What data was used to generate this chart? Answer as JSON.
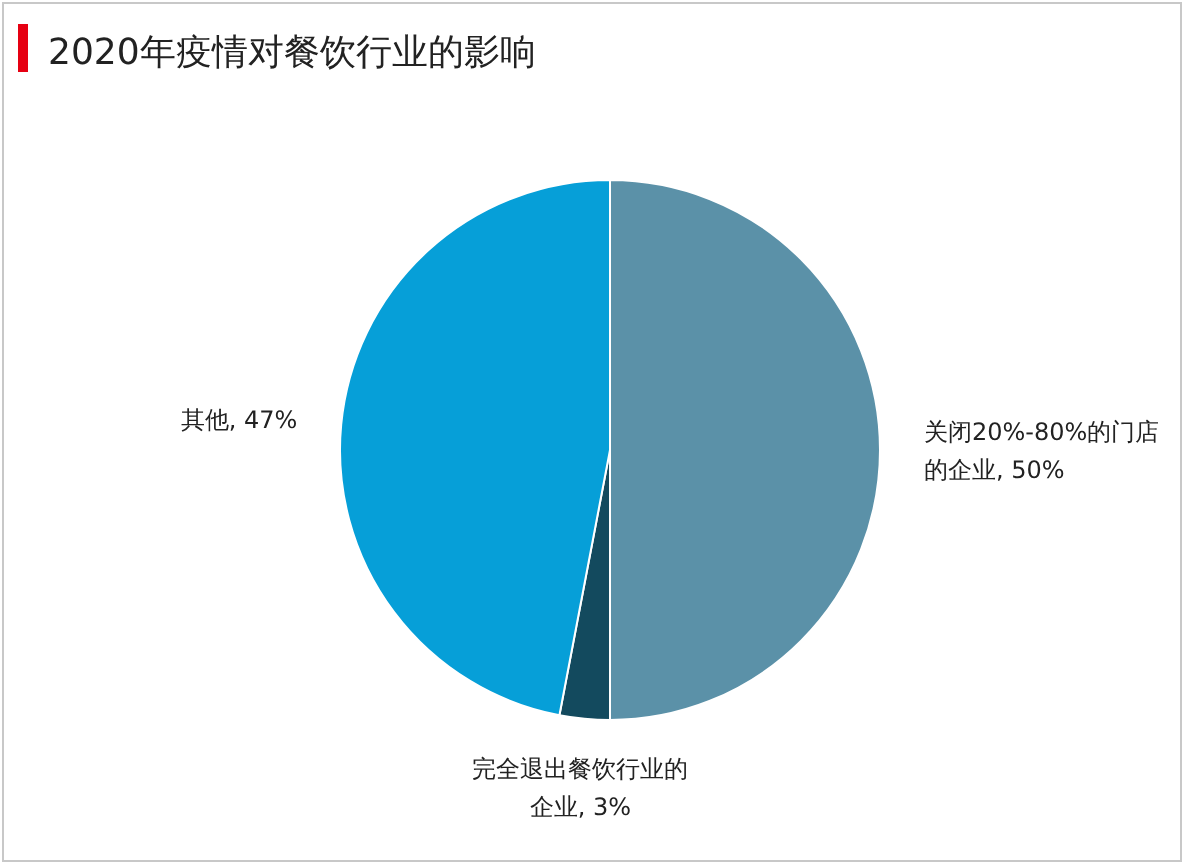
{
  "chart_data": {
    "type": "pie",
    "title": "2020年疫情对餐饮行业的影响",
    "categories": [
      "关闭20%-80%的门店的企业",
      "完全退出餐饮行业的企业",
      "其他"
    ],
    "values": [
      50,
      3,
      47
    ],
    "colors": [
      "#5b91a8",
      "#134a5e",
      "#069fd8"
    ],
    "value_labels": [
      ", 50%",
      ", 3%",
      ", 47%"
    ]
  }
}
